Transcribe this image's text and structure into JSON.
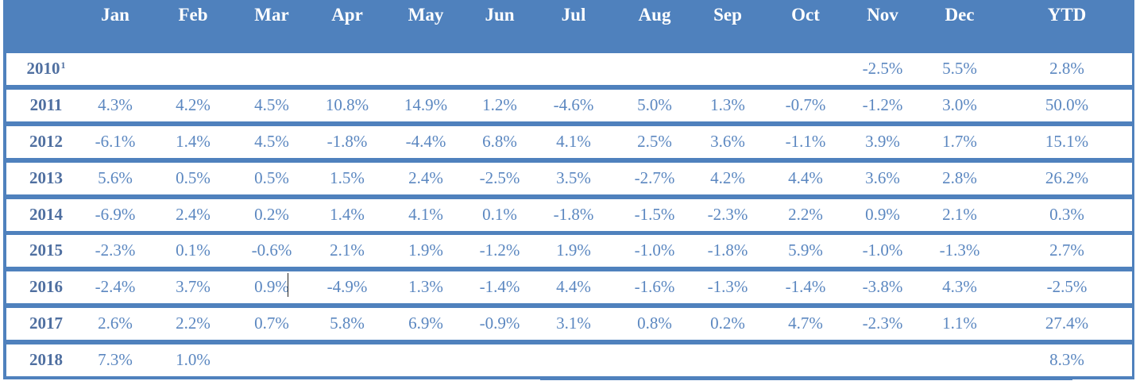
{
  "table": {
    "headers": [
      "",
      "Jan",
      "Feb",
      "Mar",
      "Apr",
      "May",
      "Jun",
      "Jul",
      "Aug",
      "Sep",
      "Oct",
      "Nov",
      "Dec",
      "YTD"
    ],
    "rows": [
      {
        "year": "2010",
        "note": "1",
        "values": [
          "",
          "",
          "",
          "",
          "",
          "",
          "",
          "",
          "",
          "",
          "-2.5%",
          "5.5%",
          "2.8%"
        ]
      },
      {
        "year": "2011",
        "note": "",
        "values": [
          "4.3%",
          "4.2%",
          "4.5%",
          "10.8%",
          "14.9%",
          "1.2%",
          "-4.6%",
          "5.0%",
          "1.3%",
          "-0.7%",
          "-1.2%",
          "3.0%",
          "50.0%"
        ]
      },
      {
        "year": "2012",
        "note": "",
        "values": [
          "-6.1%",
          "1.4%",
          "4.5%",
          "-1.8%",
          "-4.4%",
          "6.8%",
          "4.1%",
          "2.5%",
          "3.6%",
          "-1.1%",
          "3.9%",
          "1.7%",
          "15.1%"
        ]
      },
      {
        "year": "2013",
        "note": "",
        "values": [
          "5.6%",
          "0.5%",
          "0.5%",
          "1.5%",
          "2.4%",
          "-2.5%",
          "3.5%",
          "-2.7%",
          "4.2%",
          "4.4%",
          "3.6%",
          "2.8%",
          "26.2%"
        ]
      },
      {
        "year": "2014",
        "note": "",
        "values": [
          "-6.9%",
          "2.4%",
          "0.2%",
          "1.4%",
          "4.1%",
          "0.1%",
          "-1.8%",
          "-1.5%",
          "-2.3%",
          "2.2%",
          "0.9%",
          "2.1%",
          "0.3%"
        ]
      },
      {
        "year": "2015",
        "note": "",
        "values": [
          "-2.3%",
          "0.1%",
          "-0.6%",
          "2.1%",
          "1.9%",
          "-1.2%",
          "1.9%",
          "-1.0%",
          "-1.8%",
          "5.9%",
          "-1.0%",
          "-1.3%",
          "2.7%"
        ]
      },
      {
        "year": "2016",
        "note": "",
        "values": [
          "-2.4%",
          "3.7%",
          "0.9%",
          "-4.9%",
          "1.3%",
          "-1.4%",
          "4.4%",
          "-1.6%",
          "-1.3%",
          "-1.4%",
          "-3.8%",
          "4.3%",
          "-2.5%"
        ]
      },
      {
        "year": "2017",
        "note": "",
        "values": [
          "2.6%",
          "2.2%",
          "0.7%",
          "5.8%",
          "6.9%",
          "-0.9%",
          "3.1%",
          "0.8%",
          "0.2%",
          "4.7%",
          "-2.3%",
          "1.1%",
          "27.4%"
        ]
      },
      {
        "year": "2018",
        "note": "",
        "values": [
          "7.3%",
          "1.0%",
          "",
          "",
          "",
          "",
          "",
          "",
          "",
          "",
          "",
          "",
          "8.3%"
        ]
      }
    ]
  },
  "colors": {
    "header_bg": "#4f81bd",
    "header_text": "#ffffff",
    "year_text": "#4f6fa0",
    "value_text": "#5b87c0"
  }
}
